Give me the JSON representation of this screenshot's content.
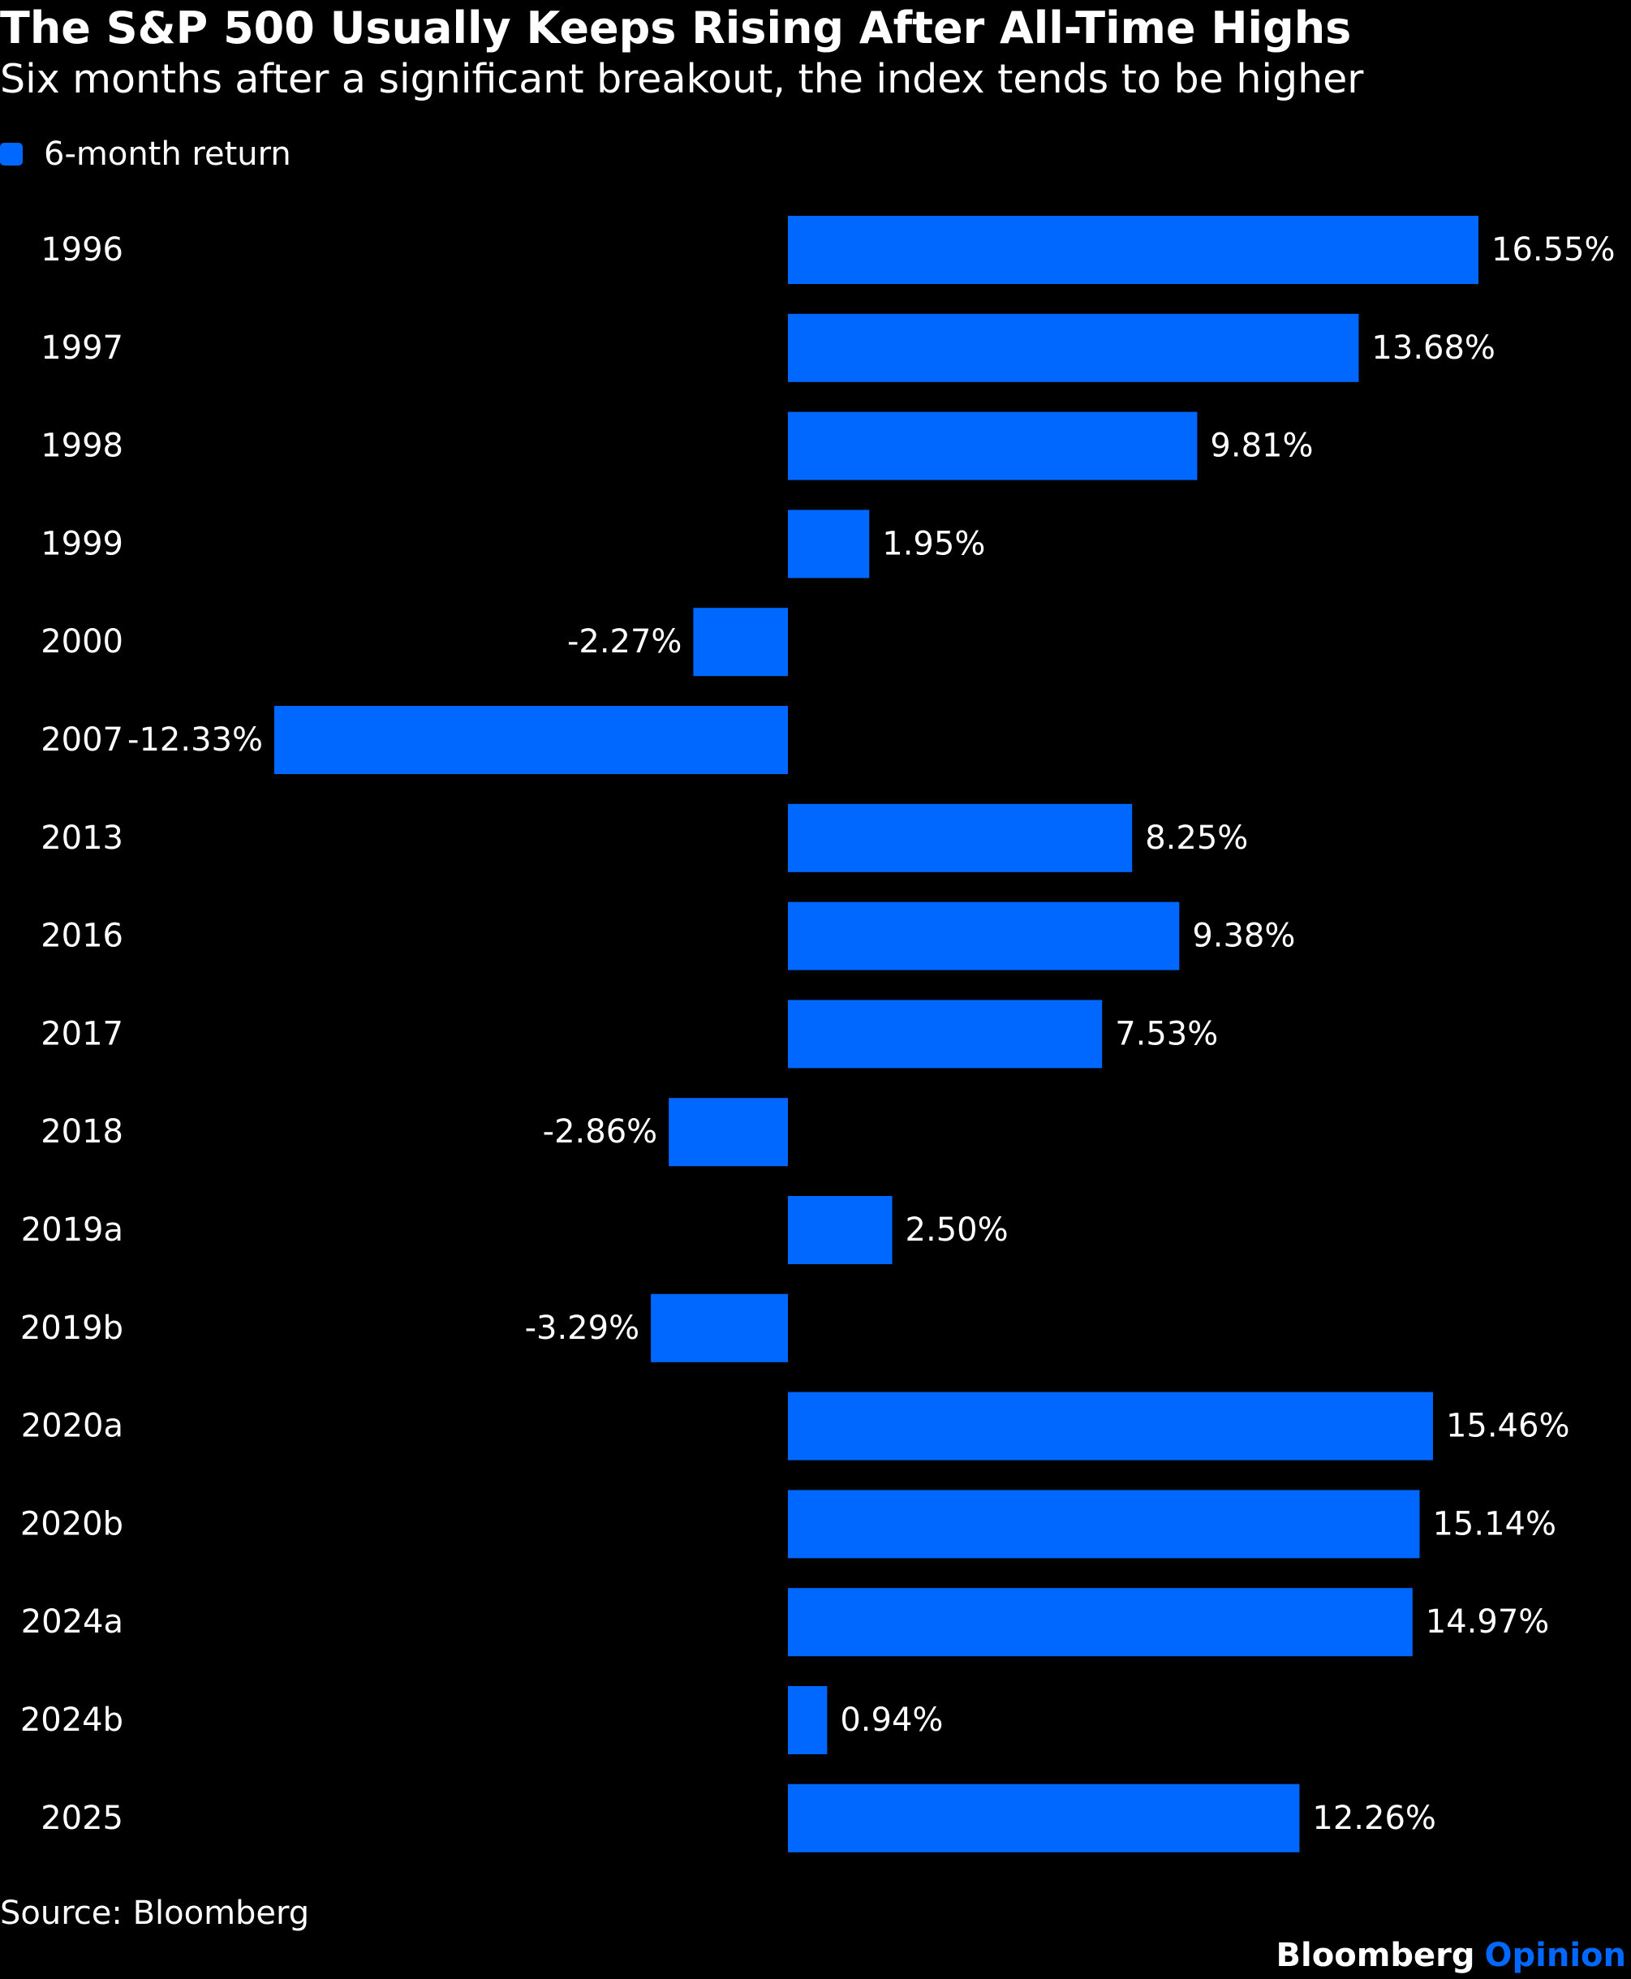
{
  "header": {
    "title": "The S&P 500 Usually Keeps Rising After All-Time Highs",
    "subtitle": "Six months after a significant breakout, the index tends to be higher"
  },
  "legend": {
    "label": "6-month return"
  },
  "colors": {
    "background": "#000000",
    "bar": "#0068ff",
    "text": "#ffffff",
    "brand_accent": "#0068ff"
  },
  "chart_data": {
    "type": "bar",
    "orientation": "horizontal",
    "categories": [
      "1996",
      "1997",
      "1998",
      "1999",
      "2000",
      "2007",
      "2013",
      "2016",
      "2017",
      "2018",
      "2019a",
      "2019b",
      "2020a",
      "2020b",
      "2024a",
      "2024b",
      "2025"
    ],
    "series": [
      {
        "name": "6-month return",
        "values": [
          16.55,
          13.68,
          9.81,
          1.95,
          -2.27,
          -12.33,
          8.25,
          9.38,
          7.53,
          -2.86,
          2.5,
          -3.29,
          15.46,
          15.14,
          14.97,
          0.94,
          12.26
        ]
      }
    ],
    "data_labels": [
      "16.55%",
      "13.68%",
      "9.81%",
      "1.95%",
      "-2.27%",
      "-12.33%",
      "8.25%",
      "9.38%",
      "7.53%",
      "-2.86%",
      "2.50%",
      "-3.29%",
      "15.46%",
      "15.14%",
      "14.97%",
      "0.94%",
      "12.26%"
    ],
    "xlim": [
      -12.33,
      16.55
    ],
    "grid": false,
    "legend_position": "top-left"
  },
  "footer": {
    "source": "Source: Bloomberg",
    "brand_name": "Bloomberg",
    "brand_opinion": "Opinion"
  }
}
